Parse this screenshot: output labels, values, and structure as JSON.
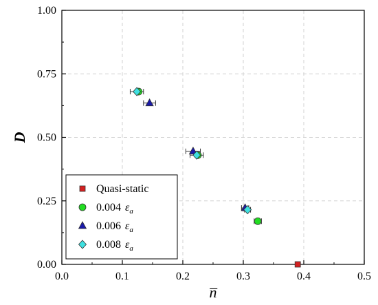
{
  "chart_data": {
    "type": "scatter",
    "xlabel": "n̅",
    "ylabel": "D",
    "xlim": [
      0.0,
      0.5
    ],
    "ylim": [
      0.0,
      1.0
    ],
    "x_ticks": [
      "0.0",
      "0.1",
      "0.2",
      "0.3",
      "0.4",
      "0.5"
    ],
    "y_ticks": [
      "0.00",
      "0.25",
      "0.50",
      "0.75",
      "1.00"
    ],
    "grid": true,
    "legend_position": "bottom-left",
    "series": [
      {
        "name": "Quasi-static",
        "name_main": "Quasi-static",
        "name_eps": "",
        "name_sub": "",
        "marker": "square",
        "color": "#d42020",
        "points": [
          {
            "x": 0.39,
            "y": 0.0,
            "xerr": 0
          }
        ]
      },
      {
        "name": "0.004 εa",
        "name_main": "0.004",
        "name_eps": "ε",
        "name_sub": "a",
        "marker": "circle",
        "color": "#22dd22",
        "points": [
          {
            "x": 0.127,
            "y": 0.68,
            "xerr": 0
          },
          {
            "x": 0.225,
            "y": 0.43,
            "xerr": 0
          },
          {
            "x": 0.324,
            "y": 0.17,
            "xerr": 0.006
          }
        ]
      },
      {
        "name": "0.006 εa",
        "name_main": "0.006",
        "name_eps": "ε",
        "name_sub": "a",
        "marker": "triangle",
        "color": "#1a1aa8",
        "points": [
          {
            "x": 0.145,
            "y": 0.635,
            "xerr": 0.01
          },
          {
            "x": 0.217,
            "y": 0.445,
            "xerr": 0.012
          },
          {
            "x": 0.303,
            "y": 0.222,
            "xerr": 0.006
          }
        ]
      },
      {
        "name": "0.008 εa",
        "name_main": "0.008",
        "name_eps": "ε",
        "name_sub": "a",
        "marker": "diamond",
        "color": "#3fe0e0",
        "points": [
          {
            "x": 0.124,
            "y": 0.68,
            "xerr": 0.011
          },
          {
            "x": 0.223,
            "y": 0.43,
            "xerr": 0.011
          },
          {
            "x": 0.307,
            "y": 0.215,
            "xerr": 0.005
          }
        ]
      }
    ]
  }
}
